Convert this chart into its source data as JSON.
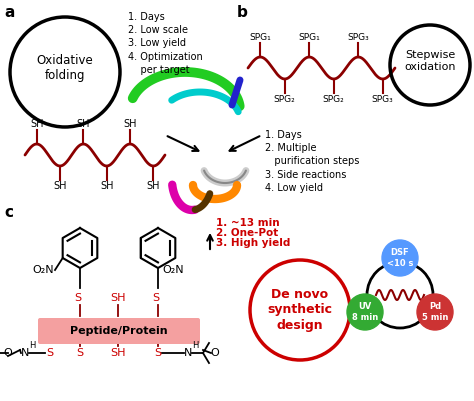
{
  "bg_color": "#ffffff",
  "dark_red": "#8B0000",
  "red": "#CC0000",
  "black": "#000000",
  "panel_a_label": "a",
  "panel_b_label": "b",
  "panel_c_label": "c",
  "oxfold_text": "Oxidative\nfolding",
  "stepwise_text": "Stepwise\noxidation",
  "denovo_text": "De novo\nsynthetic\ndesign",
  "dsf_text": "DSF\n<10 s",
  "uv_text": "UV\n8 min",
  "pd_text": "Pd\n5 min",
  "peptide_box_text": "Peptide/Protein",
  "peptide_box_color": "#F4A0A0",
  "spg_labels_top": [
    "SPG₁",
    "SPG₁",
    "SPG₃"
  ],
  "spg_labels_bot": [
    "SPG₂",
    "SPG₂",
    "SPG₃"
  ],
  "list_a": "1. Days\n2. Low scale\n3. Low yield\n4. Optimization\n    per target",
  "list_b": "1. Days\n2. Multiple\n   purification steps\n3. Side reactions\n4. Low yield",
  "list_c_1": "1. ~13 min",
  "list_c_2": "2. One-Pot",
  "list_c_3": "3. High yield"
}
